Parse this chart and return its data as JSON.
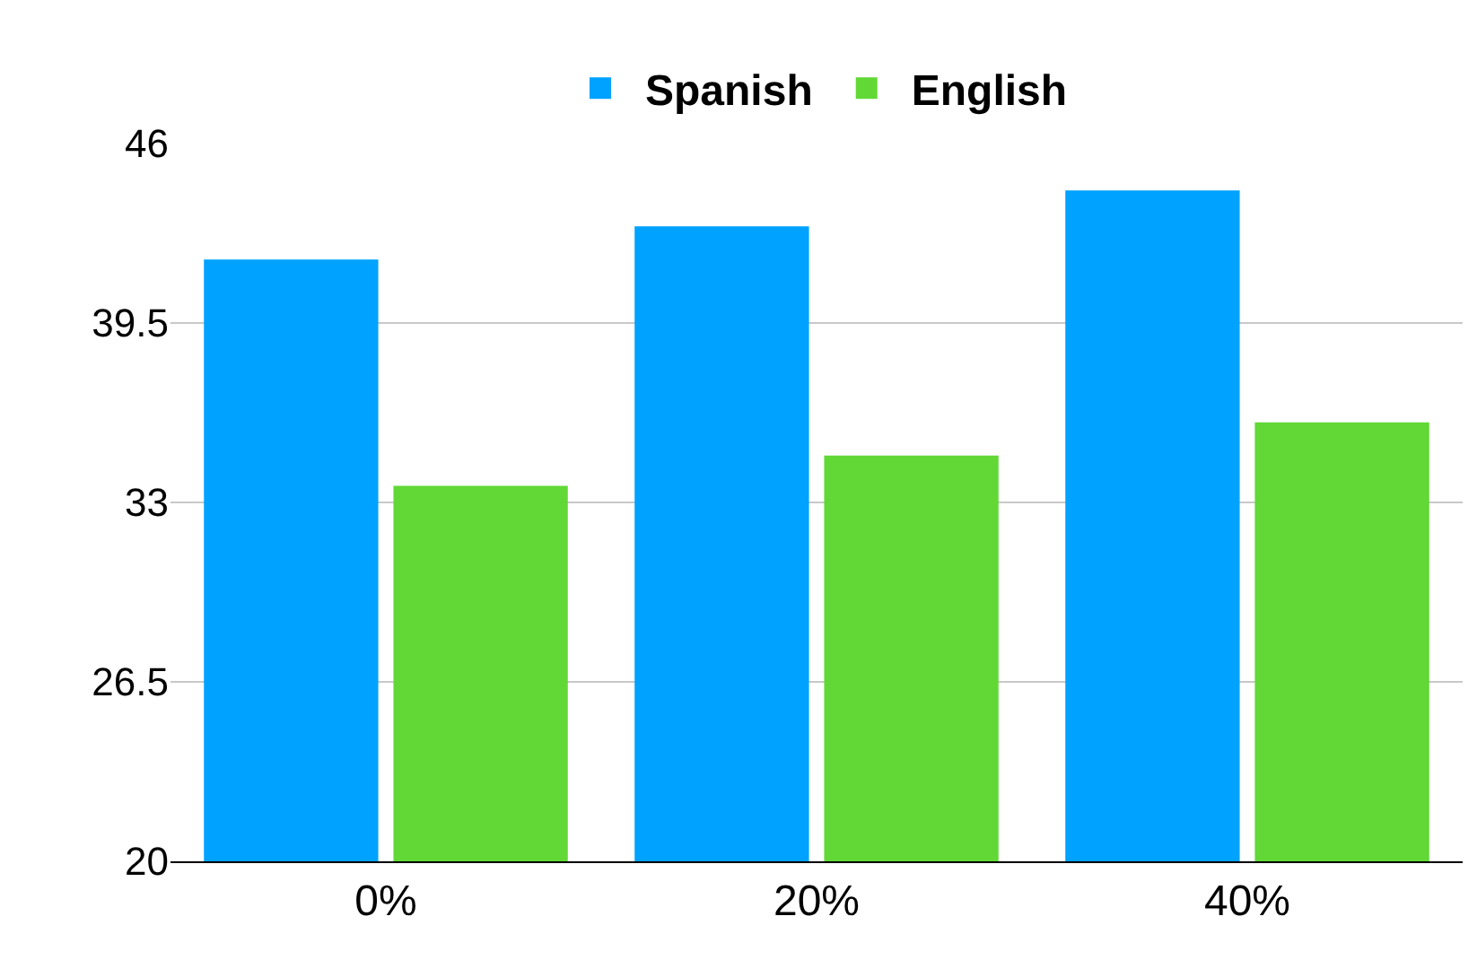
{
  "chart_data": {
    "type": "bar",
    "categories": [
      "0%",
      "20%",
      "40%"
    ],
    "series": [
      {
        "name": "Spanish",
        "color": "#00a2ff",
        "values": [
          41.8,
          43.0,
          44.3
        ]
      },
      {
        "name": "English",
        "color": "#61d836",
        "values": [
          33.6,
          34.7,
          35.9
        ]
      }
    ],
    "ylim": [
      20,
      46
    ],
    "yticks": [
      20,
      26.5,
      33,
      39.5,
      46
    ],
    "grid": "y",
    "legend": "top"
  }
}
